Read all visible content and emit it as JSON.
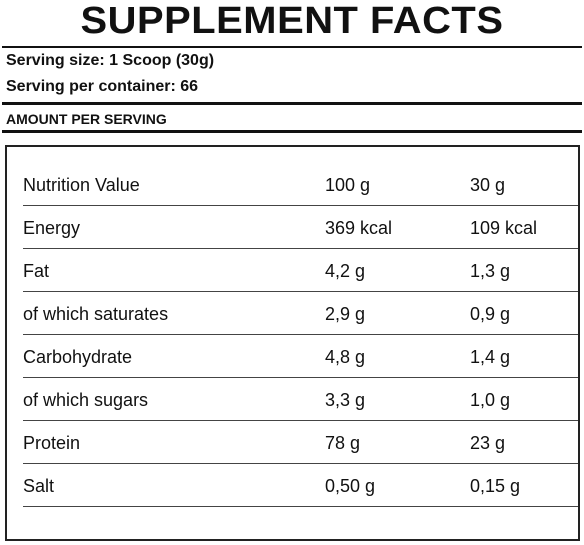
{
  "header": {
    "title": "SUPPLEMENT FACTS",
    "serving_size": "Serving size: 1 Scoop (30g)",
    "servings_per_container": "Serving per container: 66",
    "amount_per_serving": "AMOUNT PER SERVING"
  },
  "table": {
    "columns": [
      "Nutrition Value",
      "100 g",
      "30 g"
    ],
    "rows": [
      [
        "Energy",
        "369 kcal",
        "109 kcal"
      ],
      [
        "Fat",
        "4,2 g",
        "1,3 g"
      ],
      [
        "of which saturates",
        "2,9 g",
        "0,9 g"
      ],
      [
        "Carbohydrate",
        "4,8 g",
        "1,4 g"
      ],
      [
        "of which sugars",
        "3,3 g",
        "1,0 g"
      ],
      [
        "Protein",
        "78 g",
        "23 g"
      ],
      [
        "Salt",
        "0,50 g",
        "0,15 g"
      ]
    ]
  }
}
